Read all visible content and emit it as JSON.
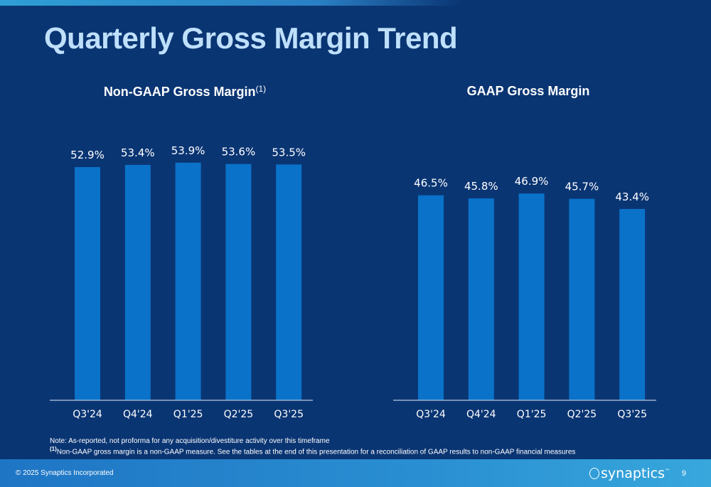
{
  "page": {
    "title": "Quarterly Gross Margin Trend",
    "page_number": "9"
  },
  "footer": {
    "copyright": "© 2025 Synaptics Incorporated",
    "brand": "synaptics",
    "brand_mark": "™"
  },
  "notes": {
    "line1": "Note: As-reported, not proforma for any acquisition/divestiture activity over this timeframe",
    "line2_marker": "(1)",
    "line2": "Non-GAAP gross margin is a non-GAAP measure. See the tables at the end of this presentation for a reconciliation of GAAP results to non-GAAP financial measures"
  },
  "colors": {
    "background": "#0a3573",
    "bar": "#0a72c9",
    "title": "#bfe0fb",
    "footer": "#2a8fd2"
  },
  "chart_data": [
    {
      "type": "bar",
      "title": "Non-GAAP Gross Margin",
      "title_superscript": "(1)",
      "categories": [
        "Q3'24",
        "Q4'24",
        "Q1'25",
        "Q2'25",
        "Q3'25"
      ],
      "values": [
        52.9,
        53.4,
        53.9,
        53.6,
        53.5
      ],
      "value_labels": [
        "52.9%",
        "53.4%",
        "53.9%",
        "53.6%",
        "53.5%"
      ],
      "unit": "%",
      "ylim": [
        0,
        55
      ],
      "grid": false,
      "legend": "none"
    },
    {
      "type": "bar",
      "title": "GAAP Gross Margin",
      "categories": [
        "Q3'24",
        "Q4'24",
        "Q1'25",
        "Q2'25",
        "Q3'25"
      ],
      "values": [
        46.5,
        45.8,
        46.9,
        45.7,
        43.4
      ],
      "value_labels": [
        "46.5%",
        "45.8%",
        "46.9%",
        "45.7%",
        "43.4%"
      ],
      "unit": "%",
      "ylim": [
        0,
        55
      ],
      "grid": false,
      "legend": "none"
    }
  ]
}
